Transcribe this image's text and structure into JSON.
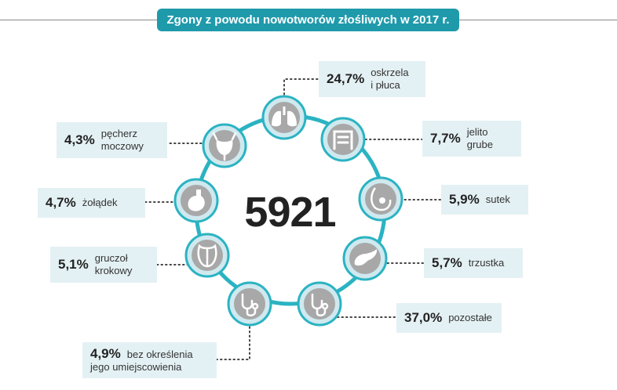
{
  "title": "Zgony z powodu nowotworów złośliwych w 2017 r.",
  "total": "5921",
  "colors": {
    "accent": "#1f9aab",
    "ring": "#2bb3c2",
    "node_fill": "#cfe9ef",
    "icon_bg": "#a8a8a8",
    "label_bg": "#e4f1f4"
  },
  "items": [
    {
      "icon": "lungs-icon",
      "percent": "24,7%",
      "label_line1": "oskrzela",
      "label_line2": "i płuca"
    },
    {
      "icon": "intestine-icon",
      "percent": "7,7%",
      "label_line1": "jelito",
      "label_line2": "grube"
    },
    {
      "icon": "breast-icon",
      "percent": "5,9%",
      "label_line1": "sutek",
      "label_line2": ""
    },
    {
      "icon": "pancreas-icon",
      "percent": "5,7%",
      "label_line1": "trzustka",
      "label_line2": ""
    },
    {
      "icon": "stethoscope-icon",
      "percent": "37,0%",
      "label_line1": "pozostałe",
      "label_line2": ""
    },
    {
      "icon": "stethoscope-icon",
      "percent": "4,9%",
      "label_line1": "bez określenia",
      "label_line2": "jego umiejscowienia"
    },
    {
      "icon": "prostate-icon",
      "percent": "5,1%",
      "label_line1": "gruczoł",
      "label_line2": "krokowy"
    },
    {
      "icon": "stomach-icon",
      "percent": "4,7%",
      "label_line1": "żołądek",
      "label_line2": ""
    },
    {
      "icon": "bladder-icon",
      "percent": "4,3%",
      "label_line1": "pęcherz",
      "label_line2": "moczowy"
    }
  ]
}
